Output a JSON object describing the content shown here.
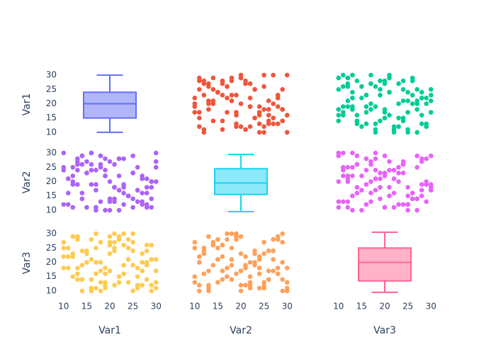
{
  "chart_data": {
    "type": "splom",
    "dimensions": [
      {
        "label": "Var1",
        "values": [
          12,
          25,
          18,
          29,
          14,
          21,
          27,
          10,
          16,
          23,
          19,
          28,
          13,
          24,
          17,
          30,
          11,
          22,
          26,
          15,
          20,
          29,
          12,
          18,
          25,
          14,
          27,
          21,
          10,
          23,
          16,
          28,
          19,
          13,
          24,
          30,
          17,
          11,
          22,
          26,
          15,
          20,
          28,
          12,
          25,
          18,
          29,
          14,
          21,
          27,
          16,
          23,
          10,
          19,
          24,
          13,
          30,
          17,
          22,
          11,
          26,
          15,
          20,
          28,
          12,
          18,
          25,
          14,
          29,
          21,
          27,
          16,
          23,
          10,
          19,
          24,
          13,
          28,
          17,
          22,
          30,
          11,
          26,
          15,
          20,
          25,
          12,
          18,
          29,
          14,
          21,
          27,
          16,
          23,
          19,
          24,
          13,
          20,
          17,
          22
        ]
      },
      {
        "label": "Var2",
        "values": [
          22,
          14,
          29,
          11,
          26,
          18,
          13,
          24,
          30,
          16,
          10,
          21,
          27,
          15,
          19,
          25,
          12,
          28,
          17,
          23,
          14,
          20,
          11,
          26,
          29,
          16,
          22,
          13,
          25,
          18,
          30,
          12,
          24,
          19,
          15,
          27,
          10,
          21,
          28,
          17,
          23,
          13,
          18,
          25,
          11,
          29,
          20,
          14,
          26,
          16,
          19,
          28,
          12,
          22,
          15,
          24,
          30,
          17,
          10,
          21,
          25,
          11,
          27,
          16,
          20,
          13,
          23,
          29,
          18,
          14,
          12,
          26,
          19,
          30,
          22,
          15,
          28,
          11,
          24,
          17,
          20,
          16,
          13,
          27,
          10,
          23,
          19,
          25,
          14,
          29,
          18,
          21,
          24,
          12,
          28,
          15,
          26,
          20,
          11,
          22
        ]
      },
      {
        "label": "Var3",
        "values": [
          15,
          27,
          20,
          12,
          24,
          30,
          17,
          22,
          10,
          26,
          13,
          19,
          28,
          21,
          16,
          11,
          25,
          29,
          18,
          23,
          26,
          10,
          22,
          17,
          30,
          14,
          20,
          12,
          27,
          19,
          11,
          24,
          16,
          29,
          13,
          21,
          25,
          18,
          28,
          15,
          20,
          29,
          14,
          23,
          10,
          27,
          12,
          19,
          24,
          17,
          28,
          16,
          25,
          11,
          21,
          18,
          13,
          30,
          15,
          22,
          12,
          20,
          17,
          26,
          29,
          10,
          24,
          14,
          21,
          27,
          23,
          14,
          30,
          18,
          12,
          25,
          16,
          20,
          11,
          28,
          17,
          22,
          11,
          24,
          27,
          19,
          29,
          13,
          26,
          10,
          25,
          12,
          21,
          16,
          18,
          28,
          14,
          23,
          20,
          13
        ]
      }
    ],
    "colors": [
      [
        "#636efa",
        "#EF553B",
        "#00cc96"
      ],
      [
        "#ab63fa",
        "#19d3f3",
        "#e763fa"
      ],
      [
        "#FECB52",
        "#FFA15A",
        "#FF6692"
      ]
    ],
    "boxes": [
      {
        "lowerfence": 10,
        "q1": 15,
        "median": 20,
        "q3": 24,
        "upperfence": 30
      },
      {
        "lowerfence": 9.5,
        "q1": 15.5,
        "median": 19.5,
        "q3": 24.5,
        "upperfence": 29.5
      },
      {
        "lowerfence": 9.5,
        "q1": 13.5,
        "median": 20,
        "q3": 25,
        "upperfence": 30.5
      }
    ],
    "xlim": [
      8.5,
      31.5
    ],
    "ylim": [
      8,
      31.5
    ],
    "xticks": [
      10,
      15,
      20,
      25,
      30
    ],
    "yticks": [
      10,
      15,
      20,
      25,
      30
    ]
  }
}
